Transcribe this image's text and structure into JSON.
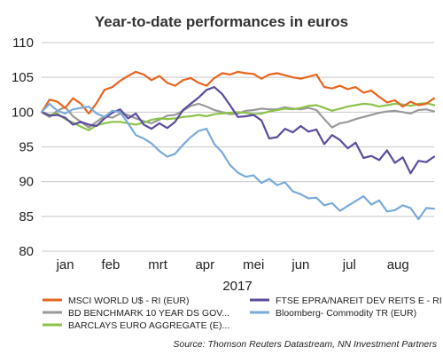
{
  "chart_data": {
    "type": "line",
    "title": "Year-to-date performances in euros",
    "xlabel": "2017",
    "ylabel": "",
    "ylim": [
      80,
      110
    ],
    "yticks": [
      80,
      85,
      90,
      95,
      100,
      105,
      110
    ],
    "grid": "horizontal",
    "x_tick_labels": [
      "jan",
      "feb",
      "mrt",
      "apr",
      "mei",
      "jun",
      "jul",
      "aug"
    ],
    "x_start": "2017-01-01",
    "x_end": "2017-09-08",
    "x_tick_dates": [
      "2017-01-16",
      "2017-02-14",
      "2017-03-16",
      "2017-04-15",
      "2017-05-16",
      "2017-06-15",
      "2017-07-16",
      "2017-08-16"
    ],
    "legend_position": "bottom",
    "source": "Source: Thomson Reuters Datastream, NN Investment Partners",
    "x": [
      "2017-01-01",
      "2017-01-06",
      "2017-01-11",
      "2017-01-16",
      "2017-01-21",
      "2017-01-26",
      "2017-01-31",
      "2017-02-05",
      "2017-02-10",
      "2017-02-15",
      "2017-02-20",
      "2017-02-25",
      "2017-03-02",
      "2017-03-07",
      "2017-03-12",
      "2017-03-17",
      "2017-03-22",
      "2017-03-27",
      "2017-04-01",
      "2017-04-06",
      "2017-04-11",
      "2017-04-16",
      "2017-04-21",
      "2017-04-26",
      "2017-05-01",
      "2017-05-06",
      "2017-05-11",
      "2017-05-16",
      "2017-05-21",
      "2017-05-26",
      "2017-05-31",
      "2017-06-05",
      "2017-06-10",
      "2017-06-15",
      "2017-06-20",
      "2017-06-25",
      "2017-06-30",
      "2017-07-05",
      "2017-07-10",
      "2017-07-15",
      "2017-07-20",
      "2017-07-25",
      "2017-07-30",
      "2017-08-04",
      "2017-08-09",
      "2017-08-14",
      "2017-08-19",
      "2017-08-24",
      "2017-08-29",
      "2017-09-03",
      "2017-09-08"
    ],
    "series": [
      {
        "name": "MSCI WORLD U$ - RI (EUR)",
        "color": "#e8641e",
        "values": [
          100.0,
          101.8,
          101.5,
          100.6,
          102.0,
          101.2,
          99.8,
          101.3,
          103.2,
          103.6,
          104.5,
          105.2,
          105.8,
          105.4,
          104.6,
          105.2,
          104.2,
          103.8,
          104.6,
          104.9,
          104.2,
          103.8,
          104.9,
          105.6,
          105.4,
          105.8,
          105.6,
          105.5,
          104.8,
          105.4,
          105.6,
          105.3,
          105.0,
          104.8,
          105.1,
          105.4,
          103.6,
          103.4,
          103.8,
          103.3,
          103.6,
          102.8,
          103.1,
          102.2,
          101.4,
          101.7,
          100.8,
          101.5,
          101.0,
          101.2,
          102.0
        ]
      },
      {
        "name": "BD BENCHMARK 10 YEAR DS GOV...",
        "color": "#9a9a9a",
        "values": [
          100.0,
          99.3,
          100.2,
          100.7,
          99.4,
          98.6,
          97.8,
          98.6,
          99.4,
          99.2,
          99.8,
          99.6,
          99.1,
          98.7,
          98.4,
          98.9,
          99.5,
          99.6,
          100.2,
          100.9,
          101.2,
          100.8,
          100.3,
          100.0,
          99.7,
          99.8,
          100.2,
          100.3,
          100.5,
          100.4,
          100.4,
          100.7,
          100.5,
          100.4,
          100.6,
          100.3,
          99.0,
          97.8,
          98.4,
          98.6,
          99.0,
          99.3,
          99.6,
          99.9,
          100.1,
          100.2,
          100.0,
          99.8,
          100.3,
          100.4,
          100.1
        ]
      },
      {
        "name": "BARCLAYS EURO AGGREGATE (E)...",
        "color": "#8bc34a",
        "values": [
          100.0,
          99.6,
          99.8,
          99.0,
          98.5,
          97.9,
          97.4,
          98.1,
          98.4,
          98.6,
          98.6,
          98.4,
          98.2,
          98.5,
          98.9,
          99.1,
          99.0,
          99.1,
          99.3,
          99.4,
          99.6,
          99.4,
          99.7,
          99.8,
          99.9,
          100.0,
          99.9,
          99.7,
          99.8,
          100.1,
          100.3,
          100.5,
          100.4,
          100.6,
          100.9,
          101.0,
          100.6,
          100.2,
          100.5,
          100.8,
          101.0,
          101.2,
          101.1,
          100.8,
          101.0,
          101.2,
          101.1,
          100.9,
          101.2,
          101.3,
          101.0
        ]
      },
      {
        "name": "FTSE EPRA/NAREIT DEV REITS E - RI",
        "color": "#5c4b9e",
        "values": [
          100.0,
          99.5,
          99.6,
          99.2,
          98.2,
          98.6,
          98.2,
          98.0,
          99.1,
          99.9,
          100.4,
          99.1,
          99.8,
          98.2,
          97.6,
          98.4,
          97.7,
          98.6,
          100.3,
          101.2,
          102.1,
          103.2,
          103.6,
          102.6,
          101.0,
          99.3,
          99.4,
          99.6,
          98.8,
          96.2,
          96.4,
          97.6,
          97.1,
          98.0,
          97.2,
          97.5,
          95.4,
          96.7,
          96.0,
          94.8,
          95.6,
          93.4,
          93.7,
          93.1,
          94.5,
          92.7,
          93.5,
          91.2,
          93.0,
          92.8,
          93.6
        ]
      },
      {
        "name": "Bloomberg- Commodity TR (EUR)",
        "color": "#7aaad8",
        "values": [
          100.0,
          101.2,
          100.2,
          99.8,
          100.4,
          100.6,
          100.8,
          99.8,
          99.3,
          100.2,
          100.0,
          98.4,
          96.7,
          96.2,
          95.5,
          94.4,
          93.6,
          94.0,
          95.3,
          96.4,
          97.3,
          97.6,
          95.4,
          94.2,
          92.4,
          91.3,
          90.7,
          90.9,
          89.8,
          90.4,
          89.5,
          89.9,
          88.6,
          88.2,
          87.6,
          87.7,
          86.6,
          86.9,
          85.8,
          86.5,
          87.2,
          87.9,
          86.7,
          87.3,
          85.7,
          85.9,
          86.6,
          86.2,
          84.6,
          86.2,
          86.1
        ]
      }
    ]
  }
}
